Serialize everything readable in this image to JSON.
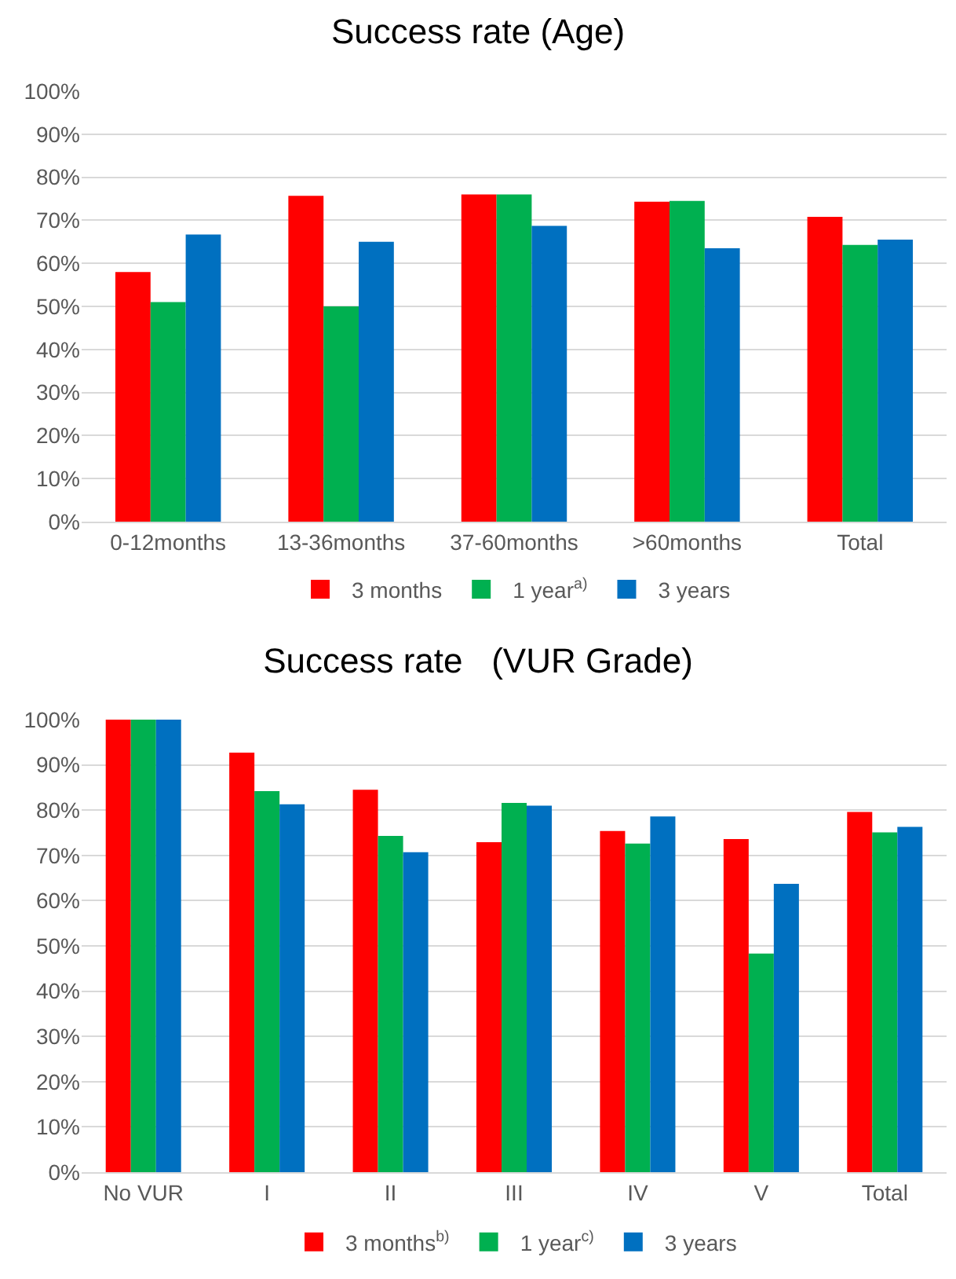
{
  "chart_data": [
    {
      "type": "bar",
      "title": "Success rate (Age)",
      "categories": [
        "0-12months",
        "13-36months",
        "37-60months",
        ">60months",
        "Total"
      ],
      "series": [
        {
          "name": "3 months",
          "color": "#ff0000",
          "values": [
            58,
            75.7,
            76,
            74.3,
            70.8
          ]
        },
        {
          "name": "1 year$^{a)}$",
          "color": "#00b050",
          "values": [
            51,
            50,
            76,
            74.5,
            64.3
          ]
        },
        {
          "name": "3 years",
          "color": "#0070c0",
          "values": [
            66.7,
            65,
            68.7,
            63.5,
            65.5
          ]
        }
      ],
      "ylim": [
        0,
        100
      ],
      "yticks": [
        {
          "value": 0,
          "label": "0%"
        },
        {
          "value": 10,
          "label": "10%"
        },
        {
          "value": 20,
          "label": "20%"
        },
        {
          "value": 30,
          "label": "30%"
        },
        {
          "value": 40,
          "label": "40%"
        },
        {
          "value": 50,
          "label": "50%"
        },
        {
          "value": 60,
          "label": "60%"
        },
        {
          "value": 70,
          "label": "70%"
        },
        {
          "value": 80,
          "label": "80%"
        },
        {
          "value": 90,
          "label": "90%"
        },
        {
          "value": 100,
          "label": "100%"
        }
      ],
      "grid": "y",
      "legend": "bottom"
    },
    {
      "type": "bar",
      "title": "Success rate   (VUR Grade)",
      "categories": [
        "No VUR",
        "I",
        "II",
        "III",
        "IV",
        "V",
        "Total"
      ],
      "series": [
        {
          "name": "3 months$^{b)}$",
          "color": "#ff0000",
          "values": [
            100,
            92.7,
            84.5,
            72.9,
            75.4,
            73.6,
            79.6
          ]
        },
        {
          "name": "1 year$^{c)}$",
          "color": "#00b050",
          "values": [
            100,
            84.2,
            74.3,
            81.6,
            72.6,
            48.3,
            75.1
          ]
        },
        {
          "name": "3 years",
          "color": "#0070c0",
          "values": [
            100,
            81.3,
            70.7,
            81,
            78.6,
            63.7,
            76.3
          ]
        }
      ],
      "ylim": [
        0,
        100
      ],
      "yticks": [
        {
          "value": 0,
          "label": "0%"
        },
        {
          "value": 10,
          "label": "10%"
        },
        {
          "value": 20,
          "label": "20%"
        },
        {
          "value": 30,
          "label": "30%"
        },
        {
          "value": 40,
          "label": "40%"
        },
        {
          "value": 50,
          "label": "50%"
        },
        {
          "value": 60,
          "label": "60%"
        },
        {
          "value": 70,
          "label": "70%"
        },
        {
          "value": 80,
          "label": "80%"
        },
        {
          "value": 90,
          "label": "90%"
        },
        {
          "value": 100,
          "label": "100%"
        }
      ],
      "grid": "y",
      "legend": "bottom"
    }
  ]
}
